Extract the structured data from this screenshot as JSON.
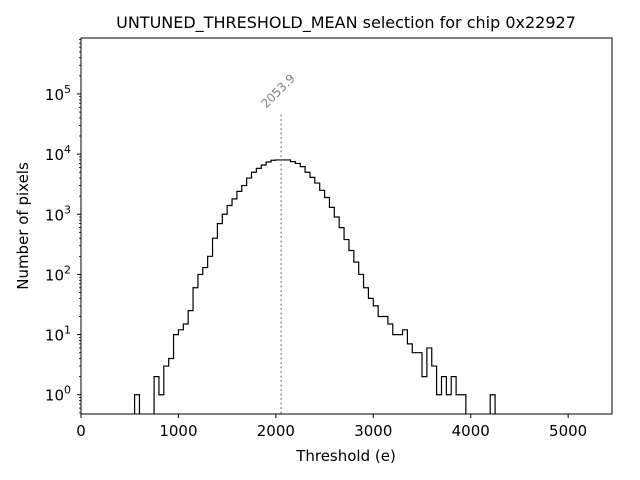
{
  "chart_data": {
    "type": "bar",
    "title": "UNTUNED_THRESHOLD_MEAN selection for chip 0x22927",
    "xlabel": "Threshold (e)",
    "ylabel": "Number of pixels",
    "xlim": [
      0,
      5450
    ],
    "ylog_exponent_range": [
      -0.32,
      5.93
    ],
    "xticks": [
      0,
      1000,
      2000,
      3000,
      4000,
      5000
    ],
    "xtick_labels": [
      "0",
      "1000",
      "2000",
      "3000",
      "4000",
      "5000"
    ],
    "yticks": [
      0,
      1,
      2,
      3,
      4,
      5
    ],
    "ytick_base": "10",
    "ytick_exponents": [
      "0",
      "1",
      "2",
      "3",
      "4",
      "5"
    ],
    "bin_width": 50,
    "bin_starts": [
      550,
      750,
      800,
      850,
      900,
      950,
      1000,
      1050,
      1100,
      1150,
      1200,
      1250,
      1300,
      1350,
      1400,
      1450,
      1500,
      1550,
      1600,
      1650,
      1700,
      1750,
      1800,
      1850,
      1900,
      1950,
      2000,
      2050,
      2100,
      2150,
      2200,
      2250,
      2300,
      2350,
      2400,
      2450,
      2500,
      2550,
      2600,
      2650,
      2700,
      2750,
      2800,
      2850,
      2900,
      2950,
      3000,
      3050,
      3100,
      3150,
      3200,
      3250,
      3300,
      3350,
      3400,
      3450,
      3500,
      3550,
      3600,
      3650,
      3700,
      3750,
      3800,
      3850,
      3900,
      4200
    ],
    "counts": [
      1,
      2,
      1,
      3,
      4,
      10,
      12,
      15,
      25,
      60,
      100,
      130,
      200,
      400,
      700,
      1000,
      1400,
      1800,
      2400,
      3000,
      4000,
      5000,
      5800,
      6600,
      7400,
      7900,
      8000,
      8000,
      8000,
      7500,
      7000,
      6200,
      5000,
      4100,
      3300,
      2500,
      1900,
      1300,
      900,
      600,
      380,
      250,
      160,
      100,
      60,
      40,
      30,
      20,
      20,
      15,
      10,
      10,
      12,
      7,
      5,
      5,
      2,
      6,
      3,
      1,
      2,
      1,
      2,
      1,
      1,
      1
    ],
    "annotation": {
      "type": "vline",
      "x": 2053.9,
      "label": "2053.9",
      "style": "dotted",
      "color": "#808080"
    }
  }
}
